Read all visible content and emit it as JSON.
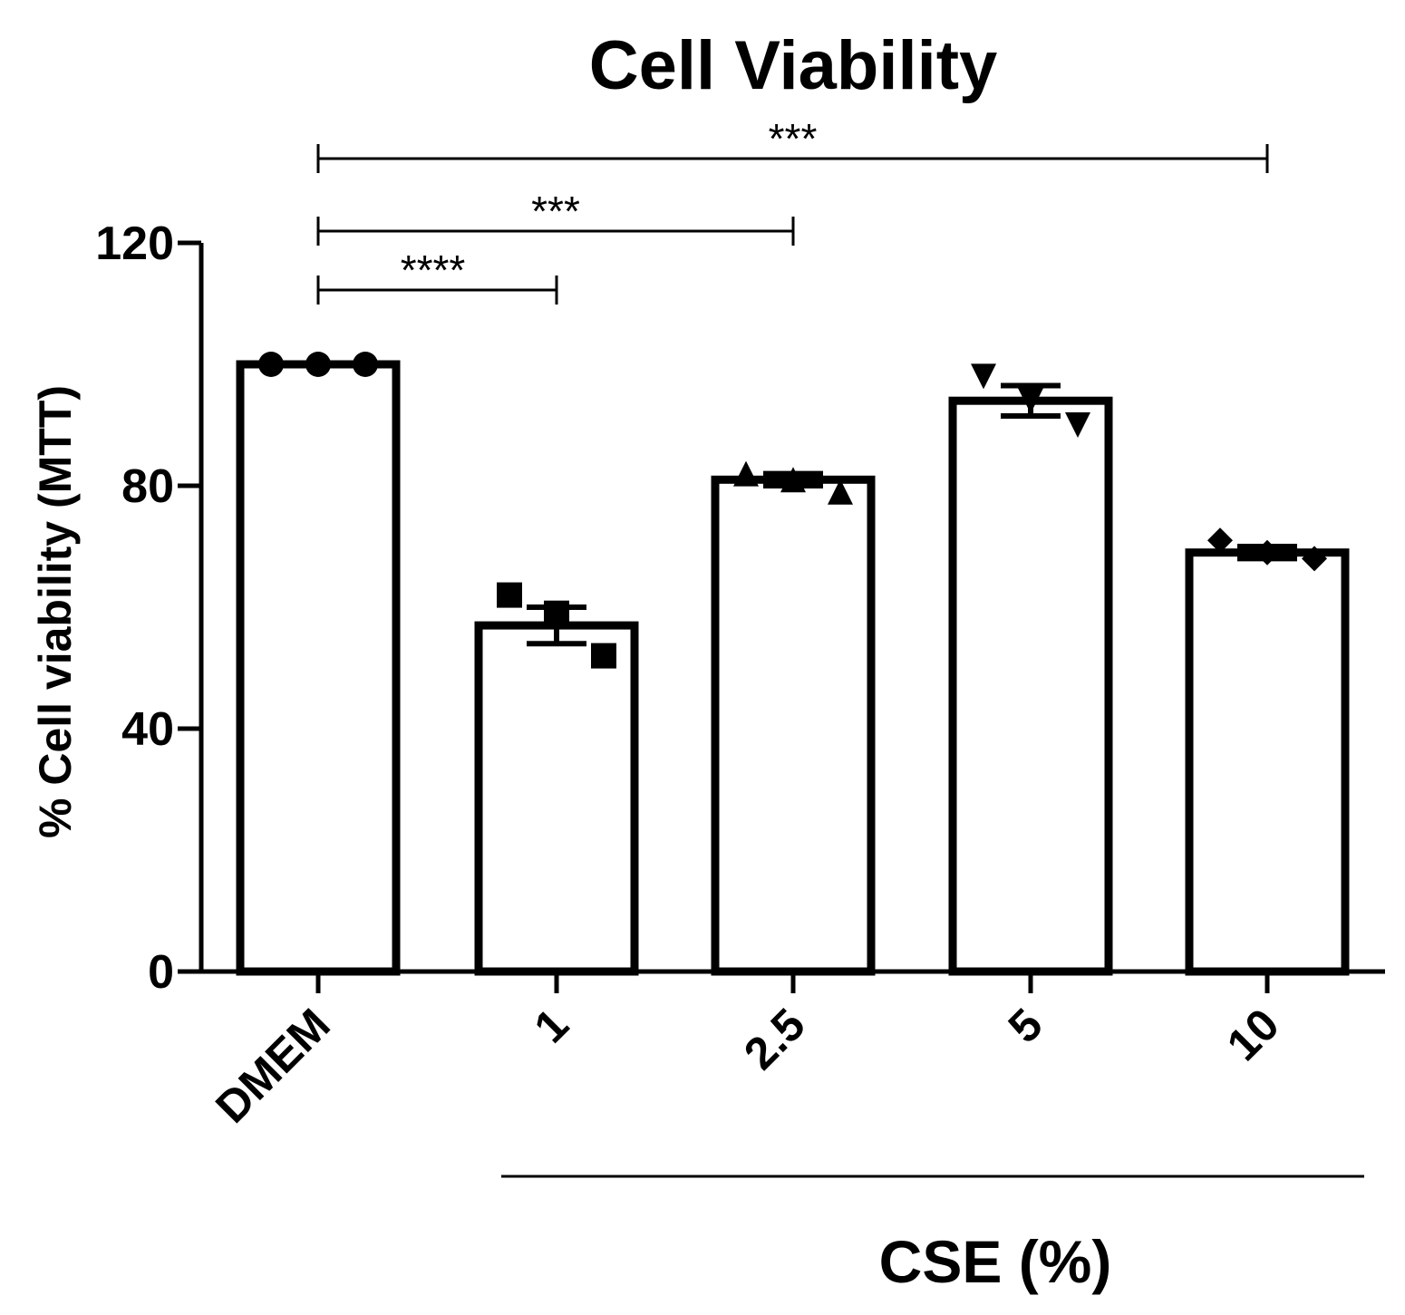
{
  "chart_data": {
    "type": "bar",
    "title": "Cell Viability",
    "xlabel": "",
    "ylabel": "% Cell viability (MTT)",
    "ylim": [
      0,
      120
    ],
    "yticks": [
      0,
      40,
      80,
      120
    ],
    "ytick_labels": [
      "0",
      "40",
      "80",
      "120"
    ],
    "categories": [
      "DMEM",
      "1",
      "2.5",
      "5",
      "10"
    ],
    "values": [
      100,
      57,
      81,
      94,
      69
    ],
    "error": [
      0,
      3,
      1,
      2.5,
      1
    ],
    "points": [
      {
        "marker": "circle",
        "values": [
          100,
          100,
          100
        ]
      },
      {
        "marker": "square",
        "values": [
          62,
          59,
          52
        ]
      },
      {
        "marker": "triangle-up",
        "values": [
          82,
          81,
          79
        ]
      },
      {
        "marker": "triangle-down",
        "values": [
          98,
          94,
          90
        ]
      },
      {
        "marker": "diamond",
        "values": [
          71,
          69,
          68
        ]
      }
    ],
    "group_label": "CSE (%)",
    "group_categories": [
      "1",
      "2.5",
      "5",
      "10"
    ],
    "significance": [
      {
        "from": "DMEM",
        "to": "1",
        "label": "****"
      },
      {
        "from": "DMEM",
        "to": "2.5",
        "label": "***"
      },
      {
        "from": "DMEM",
        "to": "10",
        "label": "***"
      }
    ]
  }
}
